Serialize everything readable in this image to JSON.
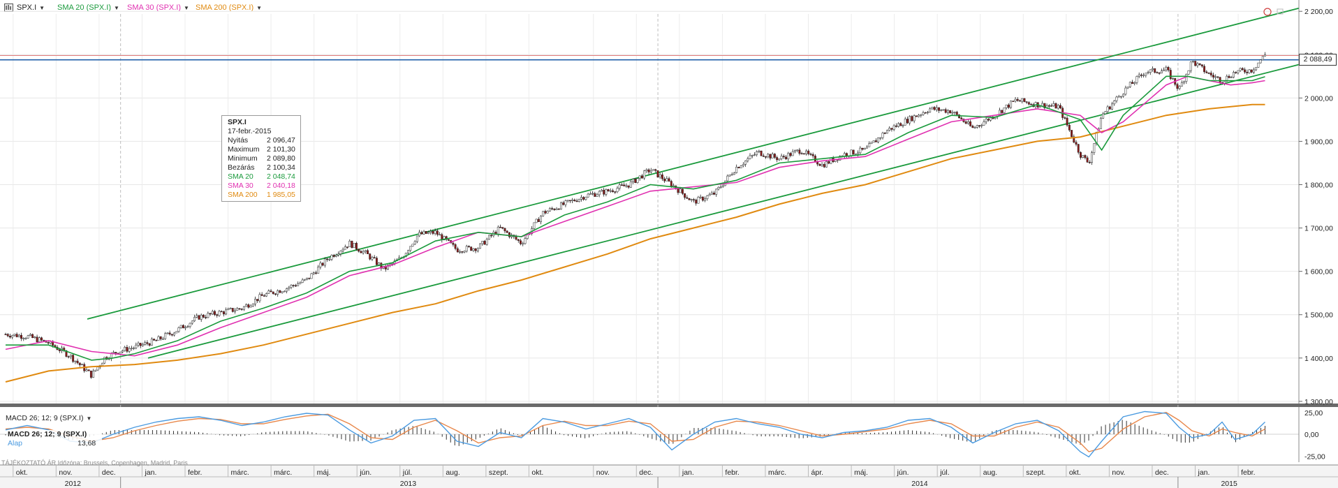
{
  "header": {
    "symbol": "SPX.I",
    "indicators": [
      {
        "label": "SMA 20 (SPX.I)",
        "color": "#1a9a3c"
      },
      {
        "label": "SMA 30 (SPX.I)",
        "color": "#e030b0"
      },
      {
        "label": "SMA 200 (SPX.I)",
        "color": "#e08a10"
      }
    ]
  },
  "colors": {
    "sma20": "#1a9a3c",
    "sma30": "#e030b0",
    "sma200": "#e08a10",
    "channel": "#1a9a3c",
    "hline_blue": "#1f5fa8",
    "hline_red": "#e07a7a",
    "macd": "#4a9ae0",
    "signal": "#e8874a"
  },
  "tooltip": {
    "symbol": "SPX.I",
    "date": "17-febr.-2015",
    "rows": [
      {
        "label": "Nyitás",
        "value": "2 096,47",
        "color": "#222222"
      },
      {
        "label": "Maximum",
        "value": "2 101,30",
        "color": "#222222"
      },
      {
        "label": "Minimum",
        "value": "2 089,80",
        "color": "#222222"
      },
      {
        "label": "Bezárás",
        "value": "2 100,34",
        "color": "#222222"
      },
      {
        "label": "SMA 20",
        "value": "2 048,74",
        "color": "#1a9a3c"
      },
      {
        "label": "SMA 30",
        "value": "2 040,18",
        "color": "#e030b0"
      },
      {
        "label": "SMA 200",
        "value": "1 985,05",
        "color": "#e08a10"
      }
    ]
  },
  "last_price_label": "2 088,49",
  "macd": {
    "header": "MACD 26; 12; 9 (SPX.I)",
    "box_title": "MACD 26; 12; 9 (SPX.I)",
    "alap_label": "Alap",
    "alap_value": "13,68"
  },
  "footer_note": "TÁJÉKOZTATÓ ÁR    Időzóna: Brussels, Copenhagen, Madrid, Paris",
  "chart_data": {
    "type": "line",
    "title": "SPX.I",
    "price_axis": {
      "ticks": [
        1300,
        1400,
        1500,
        1600,
        1700,
        1800,
        1900,
        2000,
        2100,
        2200
      ],
      "tick_labels": [
        "1 300,00",
        "1 400,00",
        "1 500,00",
        "1 600,00",
        "1 700,00",
        "1 800,00",
        "1 900,00",
        "2 000,00",
        "2 100,00",
        "2 200,00"
      ],
      "ylim": [
        1295,
        2210
      ]
    },
    "macd_axis": {
      "ticks": [
        25,
        0,
        -25
      ],
      "tick_labels": [
        "25,00",
        "0,00",
        "-25,00"
      ],
      "ylim": [
        -32,
        32
      ]
    },
    "x_axis": {
      "xlim": [
        0,
        40
      ],
      "months": [
        {
          "label": "okt.",
          "x": 0.5
        },
        {
          "label": "nov.",
          "x": 1.5
        },
        {
          "label": "dec.",
          "x": 2.5
        },
        {
          "label": "jan.",
          "x": 3.5
        },
        {
          "label": "febr.",
          "x": 4.5
        },
        {
          "label": "márc.",
          "x": 5.5
        },
        {
          "label": "márc.",
          "x": 6.5
        },
        {
          "label": "máj.",
          "x": 7.5
        },
        {
          "label": "jún.",
          "x": 8.5
        },
        {
          "label": "júl.",
          "x": 9.5
        },
        {
          "label": "aug.",
          "x": 10.5
        },
        {
          "label": "szept.",
          "x": 11.5
        },
        {
          "label": "okt.",
          "x": 12.5
        },
        {
          "label": "nov.",
          "x": 14
        },
        {
          "label": "dec.",
          "x": 15
        },
        {
          "label": "jan.",
          "x": 16
        },
        {
          "label": "febr.",
          "x": 17
        },
        {
          "label": "márc.",
          "x": 18
        },
        {
          "label": "ápr.",
          "x": 19
        },
        {
          "label": "máj.",
          "x": 20
        },
        {
          "label": "jún.",
          "x": 21
        },
        {
          "label": "júl.",
          "x": 22
        },
        {
          "label": "aug.",
          "x": 23
        },
        {
          "label": "szept.",
          "x": 24
        },
        {
          "label": "okt.",
          "x": 25
        },
        {
          "label": "nov.",
          "x": 26
        },
        {
          "label": "dec.",
          "x": 27
        },
        {
          "label": "jan.",
          "x": 28
        },
        {
          "label": "febr.",
          "x": 29
        }
      ],
      "years": [
        {
          "label": "2012",
          "x": 1.7
        },
        {
          "label": "2013",
          "x": 9.5
        },
        {
          "label": "2014",
          "x": 21.4
        },
        {
          "label": "2015",
          "x": 28.6
        }
      ],
      "year_boundaries": [
        3,
        15.5,
        27.6
      ]
    },
    "hlines": [
      {
        "name": "resistance-blue",
        "y": 2088
      },
      {
        "name": "resistance-red",
        "y": 2098
      }
    ],
    "channel": {
      "upper": {
        "x": [
          2,
          29.6
        ],
        "y": [
          1490,
          2208
        ]
      },
      "lower": {
        "x": [
          3.3,
          29.6
        ],
        "y": [
          1400,
          2078
        ]
      }
    },
    "price_close": {
      "x": [
        0,
        0.5,
        1,
        1.5,
        2,
        2.3,
        2.6,
        3,
        3.5,
        4,
        4.5,
        5,
        5.5,
        6,
        6.5,
        7,
        7.5,
        8,
        8.4,
        8.8,
        9.2,
        9.6,
        10,
        10.5,
        11,
        11.5,
        12,
        12.5,
        13,
        13.5,
        14,
        14.5,
        15,
        15.5,
        16,
        16.5,
        17,
        17.5,
        18,
        18.5,
        19,
        19.5,
        20,
        20.5,
        21,
        21.5,
        22,
        22.5,
        23,
        23.5,
        24,
        24.5,
        25,
        25.2,
        25.5,
        26,
        26.5,
        27,
        27.3,
        27.6,
        28,
        28.3,
        28.6,
        29,
        29.3
      ],
      "y": [
        1455,
        1450,
        1435,
        1405,
        1360,
        1400,
        1415,
        1425,
        1440,
        1465,
        1495,
        1505,
        1515,
        1545,
        1560,
        1580,
        1630,
        1665,
        1640,
        1605,
        1630,
        1685,
        1690,
        1650,
        1655,
        1700,
        1665,
        1735,
        1755,
        1775,
        1785,
        1800,
        1835,
        1800,
        1760,
        1780,
        1840,
        1875,
        1860,
        1880,
        1845,
        1870,
        1880,
        1925,
        1950,
        1975,
        1970,
        1930,
        1960,
        1995,
        1985,
        1980,
        1870,
        1850,
        1960,
        2015,
        2060,
        2065,
        2020,
        2085,
        2055,
        2040,
        2060,
        2065,
        2100
      ]
    },
    "sma20": {
      "x": [
        0,
        1,
        2,
        2.5,
        3,
        4,
        5,
        6,
        7,
        8,
        9,
        10,
        11,
        12,
        13,
        14,
        15,
        16,
        17,
        18,
        19,
        20,
        21,
        22,
        23,
        24,
        25,
        25.5,
        26,
        27,
        27.5,
        28,
        28.5,
        29,
        29.3
      ],
      "y": [
        1430,
        1430,
        1395,
        1400,
        1410,
        1440,
        1485,
        1515,
        1550,
        1600,
        1620,
        1670,
        1690,
        1680,
        1730,
        1760,
        1800,
        1790,
        1810,
        1850,
        1860,
        1870,
        1920,
        1960,
        1955,
        1985,
        1950,
        1880,
        1960,
        2050,
        2050,
        2040,
        2040,
        2040,
        2049
      ]
    },
    "sma30": {
      "x": [
        0,
        1,
        2,
        3,
        4,
        5,
        6,
        7,
        8,
        9,
        10,
        11,
        12,
        13,
        14,
        15,
        16,
        17,
        18,
        19,
        20,
        21,
        22,
        23,
        24,
        25,
        25.5,
        26,
        27,
        27.5,
        28,
        28.5,
        29,
        29.3
      ],
      "y": [
        1420,
        1440,
        1415,
        1405,
        1430,
        1470,
        1505,
        1540,
        1590,
        1615,
        1655,
        1690,
        1680,
        1715,
        1750,
        1785,
        1795,
        1805,
        1840,
        1855,
        1865,
        1905,
        1945,
        1960,
        1975,
        1960,
        1920,
        1945,
        2030,
        2050,
        2040,
        2030,
        2035,
        2040
      ]
    },
    "sma200": {
      "x": [
        0,
        1,
        2,
        3,
        4,
        5,
        6,
        7,
        8,
        9,
        10,
        11,
        12,
        13,
        14,
        15,
        16,
        17,
        18,
        19,
        20,
        21,
        22,
        23,
        24,
        25,
        26,
        27,
        28,
        29,
        29.3
      ],
      "y": [
        1345,
        1370,
        1380,
        1385,
        1395,
        1410,
        1430,
        1455,
        1480,
        1505,
        1525,
        1555,
        1580,
        1610,
        1640,
        1675,
        1700,
        1725,
        1755,
        1780,
        1800,
        1830,
        1860,
        1880,
        1900,
        1910,
        1935,
        1960,
        1975,
        1985,
        1985
      ]
    },
    "macd_line": {
      "x": [
        0,
        0.5,
        1,
        1.5,
        2,
        2.5,
        3,
        3.5,
        4,
        4.5,
        5,
        5.5,
        6,
        6.5,
        7,
        7.5,
        8,
        8.5,
        9,
        9.5,
        10,
        10.5,
        11,
        11.5,
        12,
        12.5,
        13,
        13.5,
        14,
        14.5,
        15,
        15.5,
        16,
        16.5,
        17,
        17.5,
        18,
        18.5,
        19,
        19.5,
        20,
        20.5,
        21,
        21.5,
        22,
        22.5,
        23,
        23.5,
        24,
        24.5,
        25,
        25.2,
        25.5,
        26,
        26.5,
        27,
        27.3,
        27.6,
        28,
        28.3,
        28.6,
        29,
        29.3
      ],
      "y": [
        5,
        10,
        5,
        -8,
        -10,
        0,
        8,
        14,
        18,
        20,
        16,
        10,
        14,
        20,
        24,
        22,
        5,
        -10,
        -2,
        16,
        18,
        -8,
        -14,
        2,
        -4,
        18,
        14,
        6,
        12,
        18,
        8,
        -18,
        0,
        14,
        18,
        12,
        8,
        0,
        -4,
        2,
        4,
        8,
        16,
        18,
        8,
        -10,
        2,
        12,
        16,
        4,
        -20,
        -26,
        -8,
        20,
        26,
        24,
        8,
        -4,
        0,
        14,
        -6,
        0,
        14
      ]
    },
    "signal_line": {
      "x": [
        0,
        0.5,
        1,
        1.5,
        2,
        2.5,
        3,
        3.5,
        4,
        4.5,
        5,
        5.5,
        6,
        6.5,
        7,
        7.5,
        8,
        8.5,
        9,
        9.5,
        10,
        10.5,
        11,
        11.5,
        12,
        12.5,
        13,
        13.5,
        14,
        14.5,
        15,
        15.5,
        16,
        16.5,
        17,
        17.5,
        18,
        18.5,
        19,
        19.5,
        20,
        20.5,
        21,
        21.5,
        22,
        22.5,
        23,
        23.5,
        24,
        24.5,
        25,
        25.2,
        25.5,
        26,
        26.5,
        27,
        27.3,
        27.6,
        28,
        28.3,
        28.6,
        29,
        29.3
      ],
      "y": [
        6,
        8,
        6,
        -2,
        -8,
        -4,
        4,
        10,
        15,
        18,
        17,
        12,
        12,
        17,
        21,
        23,
        12,
        -4,
        -6,
        8,
        16,
        4,
        -10,
        -4,
        -2,
        10,
        15,
        10,
        10,
        15,
        12,
        -8,
        -6,
        8,
        15,
        14,
        10,
        4,
        -2,
        0,
        3,
        6,
        12,
        16,
        12,
        -2,
        -2,
        8,
        14,
        8,
        -10,
        -20,
        -16,
        6,
        20,
        25,
        16,
        4,
        -2,
        6,
        2,
        -2,
        6
      ]
    }
  }
}
